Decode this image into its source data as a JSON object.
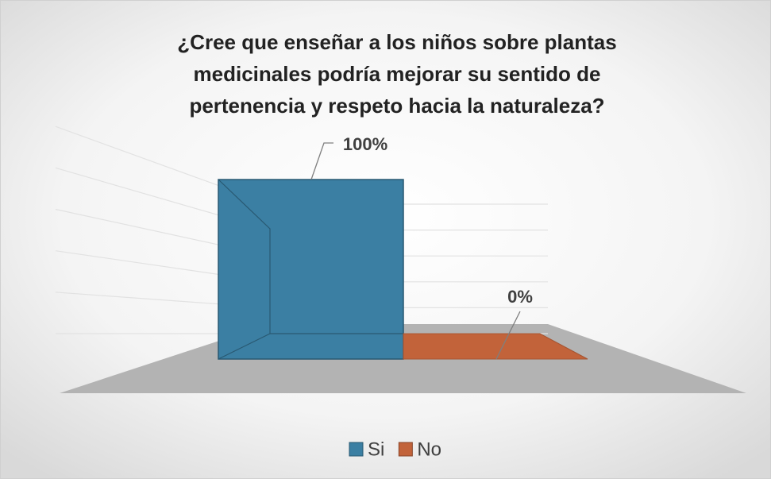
{
  "chart_data": {
    "type": "bar3d",
    "title": "¿Cree que enseñar a los niños sobre plantas medicinales podría mejorar su sentido de pertenencia y respeto hacia la naturaleza?",
    "categories": [
      null
    ],
    "series": [
      {
        "name": "Si",
        "color": "#3b7fa3",
        "values": [
          100
        ],
        "value_labels": [
          "100%"
        ]
      },
      {
        "name": "No",
        "color": "#c2633a",
        "values": [
          0
        ],
        "value_labels": [
          "0%"
        ]
      }
    ],
    "ylim": [
      0,
      100
    ],
    "yticks": [
      0,
      20,
      40,
      60,
      80,
      100
    ],
    "grid": true,
    "legend": "bottom"
  }
}
